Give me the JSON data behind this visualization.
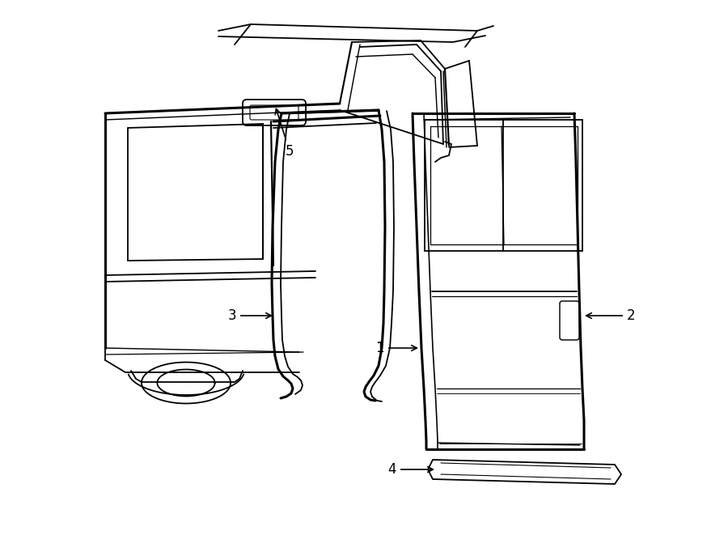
{
  "bg_color": "#ffffff",
  "line_color": "#000000",
  "lw": 1.3,
  "lw_thick": 2.2,
  "fig_w": 9.0,
  "fig_h": 6.61,
  "dpi": 100,
  "font_size": 12
}
